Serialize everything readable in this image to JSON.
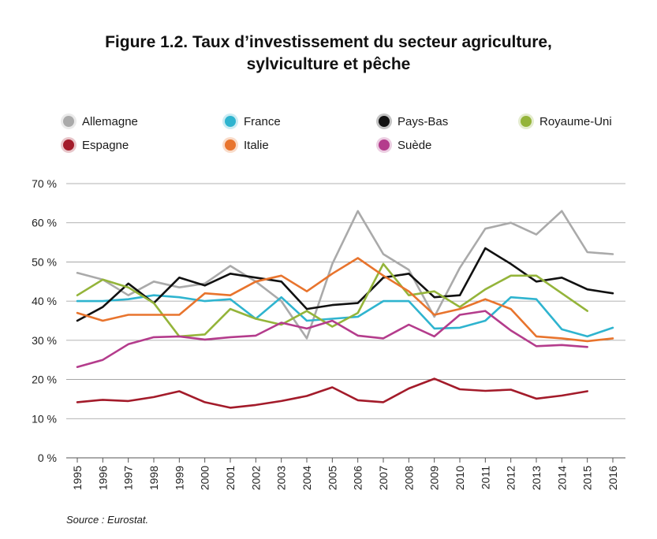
{
  "title_line1": "Figure 1.2. Taux d’investissement du secteur agriculture,",
  "title_line2": "sylviculture et pêche",
  "source": "Source : Eurostat.",
  "chart_data": {
    "type": "line",
    "categories": [
      "1995",
      "1996",
      "1997",
      "1998",
      "1999",
      "2000",
      "2001",
      "2002",
      "2003",
      "2004",
      "2005",
      "2006",
      "2007",
      "2008",
      "2009",
      "2010",
      "2011",
      "2012",
      "2013",
      "2014",
      "2015",
      "2016"
    ],
    "ylim": [
      0,
      70
    ],
    "yticks": [
      "0 %",
      "10 %",
      "20 %",
      "30 %",
      "40 %",
      "50 %",
      "60 %",
      "70 %"
    ],
    "ytick_values": [
      0,
      10,
      20,
      30,
      40,
      50,
      60,
      70
    ],
    "grid": true,
    "legend_position": "top",
    "series": [
      {
        "name": "Allemagne",
        "color": "#aaaaaa",
        "values": [
          47.2,
          45.5,
          41.5,
          45.0,
          43.5,
          44.5,
          49.0,
          45.0,
          40.0,
          30.5,
          49.5,
          63.0,
          52.0,
          48.0,
          36.0,
          48.5,
          58.5,
          60.0,
          57.0,
          63.0,
          52.5,
          52.0
        ]
      },
      {
        "name": "France",
        "color": "#2fb4cf",
        "values": [
          40.0,
          40.0,
          40.5,
          41.5,
          41.0,
          40.0,
          40.5,
          35.5,
          41.0,
          35.0,
          35.5,
          36.0,
          40.0,
          40.0,
          33.0,
          33.2,
          35.0,
          41.0,
          40.5,
          32.8,
          31.0,
          33.2
        ]
      },
      {
        "name": "Pays-Bas",
        "color": "#111111",
        "values": [
          35.0,
          38.5,
          44.5,
          39.5,
          46.0,
          44.0,
          47.0,
          46.0,
          45.0,
          38.0,
          39.0,
          39.5,
          46.0,
          47.0,
          41.0,
          41.5,
          53.5,
          49.5,
          45.0,
          46.0,
          43.0,
          42.0
        ]
      },
      {
        "name": "Royaume-Uni",
        "color": "#94b43a",
        "values": [
          41.5,
          45.5,
          43.5,
          39.5,
          31.0,
          31.5,
          38.0,
          35.5,
          34.0,
          37.5,
          33.5,
          37.0,
          49.5,
          41.5,
          42.5,
          38.5,
          43.0,
          46.5,
          46.5,
          42.0,
          37.5,
          null
        ]
      },
      {
        "name": "Espagne",
        "color": "#a31b2a",
        "values": [
          14.2,
          14.8,
          14.5,
          15.5,
          17.0,
          14.2,
          12.8,
          13.5,
          14.5,
          15.8,
          18.0,
          14.7,
          14.2,
          17.7,
          20.2,
          17.5,
          17.1,
          17.4,
          15.1,
          15.9,
          17.0,
          null
        ]
      },
      {
        "name": "Italie",
        "color": "#e8742d",
        "values": [
          37.0,
          35.0,
          36.5,
          36.5,
          36.5,
          42.0,
          41.5,
          45.0,
          46.5,
          42.5,
          47.0,
          51.0,
          46.5,
          42.5,
          36.5,
          38.0,
          40.5,
          38.0,
          31.0,
          30.5,
          29.8,
          30.5
        ]
      },
      {
        "name": "Suède",
        "color": "#b43c8c",
        "values": [
          23.2,
          25.0,
          29.0,
          30.8,
          31.0,
          30.2,
          30.8,
          31.2,
          34.5,
          33.0,
          35.0,
          31.2,
          30.5,
          34.0,
          31.0,
          36.5,
          37.5,
          32.5,
          28.5,
          28.8,
          28.3,
          null
        ]
      }
    ]
  },
  "legend": [
    {
      "name": "Allemagne",
      "color": "#aaaaaa"
    },
    {
      "name": "France",
      "color": "#2fb4cf"
    },
    {
      "name": "Pays-Bas",
      "color": "#111111"
    },
    {
      "name": "Royaume-Uni",
      "color": "#94b43a"
    },
    {
      "name": "Espagne",
      "color": "#a31b2a"
    },
    {
      "name": "Italie",
      "color": "#e8742d"
    },
    {
      "name": "Suède",
      "color": "#b43c8c"
    }
  ]
}
